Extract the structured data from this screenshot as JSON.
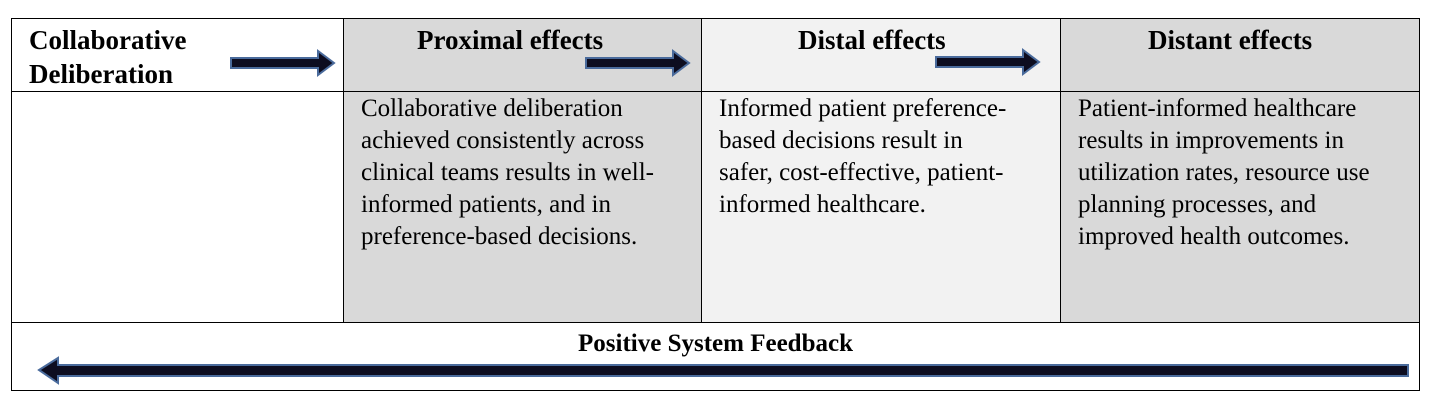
{
  "diagram": {
    "headers": {
      "collaborative_line1": "Collaborative",
      "collaborative_line2": "Deliberation",
      "proximal": "Proximal effects",
      "distal": "Distal effects",
      "distant": "Distant effects"
    },
    "cells": {
      "proximal": [
        "Collaborative deliberation",
        "achieved consistently across",
        "clinical teams results in well-",
        "informed patients, and in",
        "preference-based decisions."
      ],
      "distal": [
        "Informed patient preference-",
        "based decisions result in",
        "safer, cost-effective, patient-",
        "informed healthcare."
      ],
      "distant": [
        "Patient-informed healthcare",
        "results in improvements in",
        "utilization rates, resource use",
        "planning processes, and",
        "improved health outcomes."
      ]
    },
    "feedback": {
      "title": "Positive System Feedback"
    },
    "colors": {
      "arrow_fill": "#0d0d20",
      "arrow_outline": "#4a6b9c",
      "gray_cell": "#d9d9d9",
      "light_cell": "#f2f2f2"
    }
  }
}
